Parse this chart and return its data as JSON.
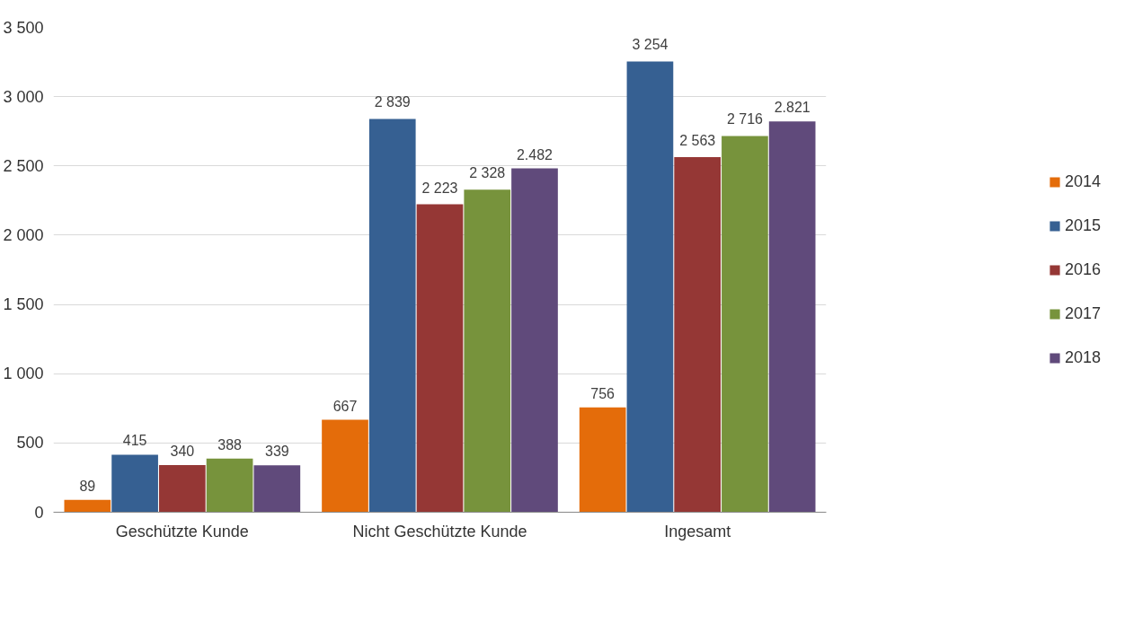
{
  "chart_data": {
    "type": "bar",
    "categories": [
      "Geschützte Kunde",
      "Nicht Geschützte Kunde",
      "Ingesamt"
    ],
    "series": [
      {
        "name": "2014",
        "color": "#e46c0a",
        "values": [
          89,
          667,
          756
        ],
        "value_labels": [
          "89",
          "667",
          "756"
        ]
      },
      {
        "name": "2015",
        "color": "#366092",
        "values": [
          415,
          2839,
          3254
        ],
        "value_labels": [
          "415",
          "2 839",
          "3 254"
        ]
      },
      {
        "name": "2016",
        "color": "#953735",
        "values": [
          340,
          2223,
          2563
        ],
        "value_labels": [
          "340",
          "2 223",
          "2 563"
        ]
      },
      {
        "name": "2017",
        "color": "#77933c",
        "values": [
          388,
          2328,
          2716
        ],
        "value_labels": [
          "388",
          "2 328",
          "2 716"
        ]
      },
      {
        "name": "2018",
        "color": "#604a7b",
        "values": [
          339,
          2482,
          2821
        ],
        "value_labels": [
          "339",
          "2.482",
          "2.821"
        ]
      }
    ],
    "ylim": [
      0,
      3500
    ],
    "yticks": [
      {
        "value": 0,
        "label": "0"
      },
      {
        "value": 500,
        "label": "500"
      },
      {
        "value": 1000,
        "label": "1 000"
      },
      {
        "value": 1500,
        "label": "1 500"
      },
      {
        "value": 2000,
        "label": "2 000"
      },
      {
        "value": 2500,
        "label": "2 500"
      },
      {
        "value": 3000,
        "label": "3 000"
      },
      {
        "value": 3500,
        "label": "3 500"
      }
    ],
    "grid": "y",
    "legend": "right"
  }
}
